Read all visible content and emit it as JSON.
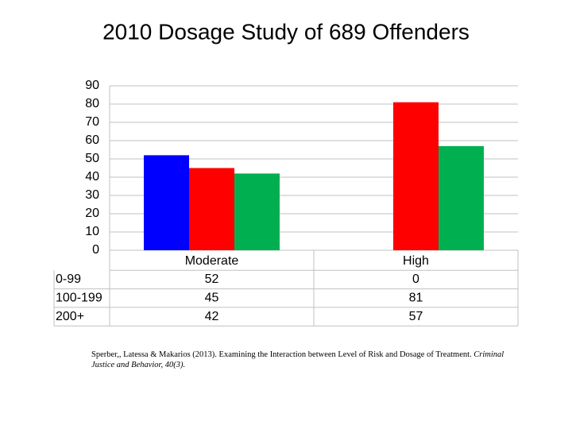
{
  "chart_data": {
    "type": "bar",
    "title": "2010 Dosage Study of 689 Offenders",
    "categories": [
      "Moderate",
      "High"
    ],
    "series": [
      {
        "name": "0-99",
        "color": "#0000ff",
        "values": [
          52,
          0
        ]
      },
      {
        "name": "100-199",
        "color": "#ff0000",
        "values": [
          45,
          81
        ]
      },
      {
        "name": "200+",
        "color": "#00b050",
        "values": [
          42,
          57
        ]
      }
    ],
    "ylim": [
      0,
      90
    ],
    "yticks": [
      0,
      10,
      20,
      30,
      40,
      50,
      60,
      70,
      80,
      90
    ],
    "grid": true,
    "citation": {
      "text": "Sperber,, Latessa & Makarios (2013). Examining the Interaction between Level of Risk and Dosage of Treatment.",
      "journal": "Criminal Justice and Behavior, 40(3)."
    }
  }
}
